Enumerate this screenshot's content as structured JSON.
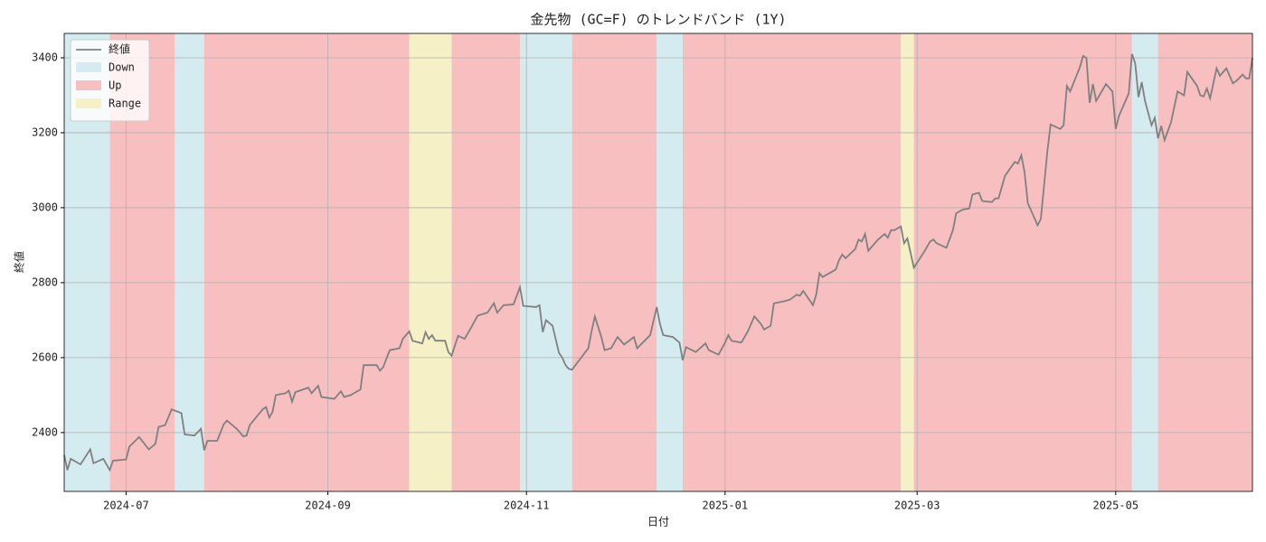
{
  "chart_data": {
    "type": "line",
    "title": "金先物 (GC=F) のトレンドバンド (1Y)",
    "xlabel": "日付",
    "ylabel": "終値",
    "xlim": [
      19886,
      20251
    ],
    "ylim": [
      2243,
      3465
    ],
    "xticks": [
      {
        "value": 19905,
        "label": "2024-07"
      },
      {
        "value": 19967,
        "label": "2024-09"
      },
      {
        "value": 20028,
        "label": "2024-11"
      },
      {
        "value": 20089,
        "label": "2025-01"
      },
      {
        "value": 20148,
        "label": "2025-03"
      },
      {
        "value": 20209,
        "label": "2025-05"
      }
    ],
    "yticks": [
      2400,
      2600,
      2800,
      3000,
      3200,
      3400
    ],
    "grid": true,
    "legend": "upper left",
    "band_types": [
      {
        "name": "Down",
        "color": "#d4ebf0"
      },
      {
        "name": "Up",
        "color": "#f7bfbf"
      },
      {
        "name": "Range",
        "color": "#f6f0c6"
      }
    ],
    "bands": [
      {
        "type": "Down",
        "start": 19886,
        "end": 19900
      },
      {
        "type": "Up",
        "start": 19900,
        "end": 19920
      },
      {
        "type": "Down",
        "start": 19920,
        "end": 19929
      },
      {
        "type": "Up",
        "start": 19929,
        "end": 19992
      },
      {
        "type": "Range",
        "start": 19992,
        "end": 20005
      },
      {
        "type": "Up",
        "start": 20005,
        "end": 20026
      },
      {
        "type": "Down",
        "start": 20026,
        "end": 20042
      },
      {
        "type": "Up",
        "start": 20042,
        "end": 20068
      },
      {
        "type": "Down",
        "start": 20068,
        "end": 20076
      },
      {
        "type": "Up",
        "start": 20076,
        "end": 20143
      },
      {
        "type": "Range",
        "start": 20143,
        "end": 20147
      },
      {
        "type": "Up",
        "start": 20147,
        "end": 20214
      },
      {
        "type": "Down",
        "start": 20214,
        "end": 20222
      },
      {
        "type": "Up",
        "start": 20222,
        "end": 20251
      }
    ],
    "x": [
      19886,
      19887,
      19888,
      19891,
      19894,
      19895,
      19898,
      19900,
      19901,
      19905,
      19906,
      19909,
      19912,
      19914,
      19915,
      19917,
      19919,
      19922,
      19923,
      19926,
      19928,
      19929,
      19930,
      19933,
      19935,
      19936,
      19939,
      19941,
      19942,
      19943,
      19947,
      19948,
      19949,
      19950,
      19951,
      19954,
      19955,
      19956,
      19957,
      19961,
      19962,
      19964,
      19965,
      19969,
      19971,
      19972,
      19974,
      19977,
      19978,
      19982,
      19983,
      19984,
      19986,
      19989,
      19990,
      19992,
      19993,
      19996,
      19997,
      19998,
      19999,
      20000,
      20003,
      20004,
      20005,
      20007,
      20009,
      20011,
      20013,
      20016,
      20018,
      20019,
      20021,
      20024,
      20026,
      20027,
      20031,
      20032,
      20033,
      20034,
      20036,
      20038,
      20039,
      20040,
      20041,
      20042,
      20047,
      20048,
      20049,
      20051,
      20052,
      20054,
      20056,
      20058,
      20061,
      20062,
      20066,
      20068,
      20069,
      20070,
      20073,
      20075,
      20076,
      20077,
      20080,
      20083,
      20084,
      20087,
      20089,
      20090,
      20091,
      20094,
      20095,
      20096,
      20098,
      20100,
      20101,
      20103,
      20104,
      20107,
      20109,
      20111,
      20112,
      20113,
      20116,
      20117,
      20118,
      20119,
      20123,
      20124,
      20125,
      20126,
      20129,
      20130,
      20131,
      20132,
      20133,
      20136,
      20138,
      20139,
      20140,
      20141,
      20143,
      20144,
      20145,
      20147,
      20150,
      20152,
      20153,
      20154,
      20157,
      20159,
      20160,
      20162,
      20164,
      20165,
      20167,
      20168,
      20171,
      20172,
      20173,
      20175,
      20177,
      20178,
      20179,
      20180,
      20181,
      20182,
      20185,
      20186,
      20188,
      20189,
      20192,
      20193,
      20194,
      20195,
      20198,
      20199,
      20200,
      20201,
      20202,
      20203,
      20204,
      20206,
      20208,
      20209,
      20210,
      20213,
      20214,
      20215,
      20216,
      20217,
      20218,
      20220,
      20221,
      20222,
      20223,
      20224,
      20226,
      20228,
      20230,
      20231,
      20234,
      20235,
      20236,
      20237,
      20238,
      20240,
      20241,
      20243,
      20245,
      20246,
      20248,
      20249,
      20250,
      20251
    ],
    "series": [
      {
        "name": "終値",
        "color": "#808080",
        "values": [
          2340,
          2300,
          2330,
          2315,
          2355,
          2318,
          2330,
          2300,
          2325,
          2328,
          2362,
          2388,
          2355,
          2370,
          2415,
          2420,
          2462,
          2452,
          2395,
          2392,
          2410,
          2353,
          2378,
          2378,
          2422,
          2432,
          2410,
          2390,
          2392,
          2420,
          2462,
          2468,
          2440,
          2455,
          2500,
          2505,
          2512,
          2482,
          2508,
          2520,
          2505,
          2525,
          2495,
          2490,
          2510,
          2495,
          2500,
          2515,
          2580,
          2580,
          2565,
          2575,
          2620,
          2625,
          2650,
          2670,
          2645,
          2638,
          2668,
          2650,
          2660,
          2645,
          2645,
          2615,
          2605,
          2658,
          2650,
          2680,
          2712,
          2720,
          2745,
          2720,
          2740,
          2742,
          2788,
          2738,
          2735,
          2740,
          2668,
          2700,
          2685,
          2612,
          2600,
          2580,
          2570,
          2568,
          2625,
          2670,
          2710,
          2655,
          2620,
          2625,
          2655,
          2635,
          2655,
          2625,
          2660,
          2735,
          2690,
          2660,
          2655,
          2640,
          2593,
          2628,
          2615,
          2638,
          2620,
          2608,
          2640,
          2660,
          2645,
          2640,
          2655,
          2670,
          2710,
          2690,
          2675,
          2685,
          2745,
          2750,
          2755,
          2768,
          2765,
          2778,
          2740,
          2768,
          2825,
          2815,
          2835,
          2860,
          2875,
          2865,
          2890,
          2915,
          2910,
          2930,
          2885,
          2915,
          2930,
          2920,
          2940,
          2940,
          2950,
          2905,
          2918,
          2840,
          2880,
          2910,
          2915,
          2905,
          2893,
          2940,
          2985,
          2995,
          2998,
          3035,
          3040,
          3018,
          3015,
          3025,
          3025,
          3085,
          3110,
          3122,
          3118,
          3140,
          3095,
          3012,
          2953,
          2970,
          3150,
          3222,
          3210,
          3220,
          3325,
          3310,
          3375,
          3405,
          3400,
          3280,
          3330,
          3285,
          3300,
          3330,
          3310,
          3210,
          3245,
          3305,
          3410,
          3385,
          3295,
          3335,
          3285,
          3220,
          3240,
          3185,
          3218,
          3180,
          3228,
          3310,
          3300,
          3362,
          3325,
          3300,
          3297,
          3318,
          3292,
          3372,
          3352,
          3372,
          3332,
          3338,
          3355,
          3345,
          3345,
          3400
        ]
      }
    ]
  }
}
